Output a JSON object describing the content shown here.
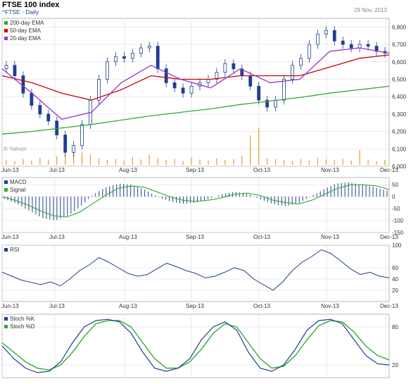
{
  "header": {
    "title": "FTSE 100 index",
    "ticker": "^FTSE · Daily",
    "date": "29 Nov, 2013",
    "watermark": "© Yahoo!"
  },
  "colors": {
    "ema200": "#33aa33",
    "ema50": "#cc0000",
    "ema20": "#9933cc",
    "candle": "#1f3f8f",
    "volume": "#e8a23a",
    "macd": "#1f3f8f",
    "signal": "#33aa33",
    "rsi": "#1f3f8f",
    "stochK": "#1f3f8f",
    "stochD": "#33aa33",
    "grid": "#d8d8d8",
    "axis": "#555555"
  },
  "chart_data": [
    {
      "type": "candlestick",
      "title": "FTSE 100 index",
      "x_ticks": [
        "Jun-13",
        "Jul-13",
        "Aug-13",
        "Sep-13",
        "Oct-13",
        "Nov-13",
        "Dec-13"
      ],
      "y_ticks": [
        "6,800",
        "6,700",
        "6,600",
        "6,500",
        "6,400",
        "6,300",
        "6,200",
        "6,100",
        "6,000"
      ],
      "ylim": [
        6000,
        6850
      ],
      "legend": [
        "200-day EMA",
        "50-day EMA",
        "20-day EMA"
      ],
      "series": [
        {
          "name": "200-day EMA",
          "values": [
            6185,
            6200,
            6220,
            6240,
            6265,
            6290,
            6310,
            6330,
            6355,
            6375,
            6395,
            6420,
            6440,
            6460
          ]
        },
        {
          "name": "50-day EMA",
          "values": [
            6520,
            6480,
            6420,
            6380,
            6440,
            6520,
            6500,
            6500,
            6520,
            6520,
            6520,
            6570,
            6620,
            6640
          ]
        },
        {
          "name": "20-day EMA",
          "values": [
            6560,
            6420,
            6270,
            6310,
            6480,
            6580,
            6500,
            6450,
            6560,
            6480,
            6500,
            6660,
            6680,
            6650
          ]
        }
      ],
      "closes": [
        6580,
        6520,
        6420,
        6350,
        6300,
        6260,
        6180,
        6080,
        6120,
        6240,
        6380,
        6500,
        6600,
        6630,
        6620,
        6650,
        6680,
        6690,
        6560,
        6480,
        6450,
        6420,
        6460,
        6480,
        6500,
        6540,
        6590,
        6560,
        6520,
        6460,
        6380,
        6340,
        6380,
        6500,
        6580,
        6620,
        6700,
        6760,
        6780,
        6720,
        6700,
        6680,
        6700,
        6690,
        6660,
        6650
      ],
      "volume_note": "volume bars shown at bottom"
    },
    {
      "type": "bar",
      "title": "MACD",
      "legend": [
        "MACD",
        "Signal"
      ],
      "y_ticks": [
        "50",
        "0",
        "-50",
        "-100",
        "-150"
      ],
      "ylim": [
        -150,
        80
      ],
      "macd": [
        -10,
        -30,
        -60,
        -90,
        -100,
        -80,
        -40,
        10,
        40,
        55,
        50,
        30,
        0,
        -20,
        -30,
        -25,
        -10,
        10,
        20,
        15,
        -10,
        -30,
        -40,
        -30,
        0,
        30,
        55,
        60,
        50,
        40,
        25
      ],
      "signal": [
        0,
        -15,
        -35,
        -60,
        -80,
        -85,
        -65,
        -30,
        5,
        35,
        45,
        40,
        20,
        0,
        -15,
        -20,
        -15,
        -5,
        10,
        15,
        5,
        -15,
        -25,
        -30,
        -15,
        10,
        35,
        50,
        50,
        45,
        30
      ]
    },
    {
      "type": "line",
      "title": "RSI",
      "y_ticks": [
        "100",
        "60",
        "40",
        "20"
      ],
      "ylim": [
        0,
        100
      ],
      "values": [
        52,
        45,
        38,
        34,
        30,
        35,
        28,
        40,
        55,
        65,
        78,
        70,
        60,
        50,
        45,
        48,
        58,
        68,
        62,
        55,
        50,
        42,
        45,
        52,
        60,
        55,
        40,
        30,
        20,
        35,
        55,
        70,
        80,
        92,
        85,
        72,
        58,
        48,
        52,
        45,
        42
      ]
    },
    {
      "type": "line",
      "title": "Stoch",
      "legend": [
        "Stoch %K",
        "Stoch %D"
      ],
      "y_ticks": [
        "80",
        "20"
      ],
      "ylim": [
        0,
        100
      ],
      "k": [
        50,
        30,
        15,
        8,
        10,
        25,
        55,
        80,
        90,
        92,
        88,
        70,
        40,
        15,
        10,
        15,
        30,
        60,
        80,
        88,
        75,
        40,
        15,
        10,
        20,
        45,
        75,
        90,
        92,
        85,
        60,
        35,
        22,
        20
      ],
      "d": [
        55,
        40,
        25,
        15,
        12,
        20,
        40,
        65,
        85,
        90,
        90,
        80,
        55,
        30,
        15,
        15,
        25,
        45,
        70,
        85,
        80,
        55,
        30,
        15,
        18,
        35,
        60,
        82,
        90,
        88,
        72,
        50,
        35,
        28
      ]
    }
  ]
}
